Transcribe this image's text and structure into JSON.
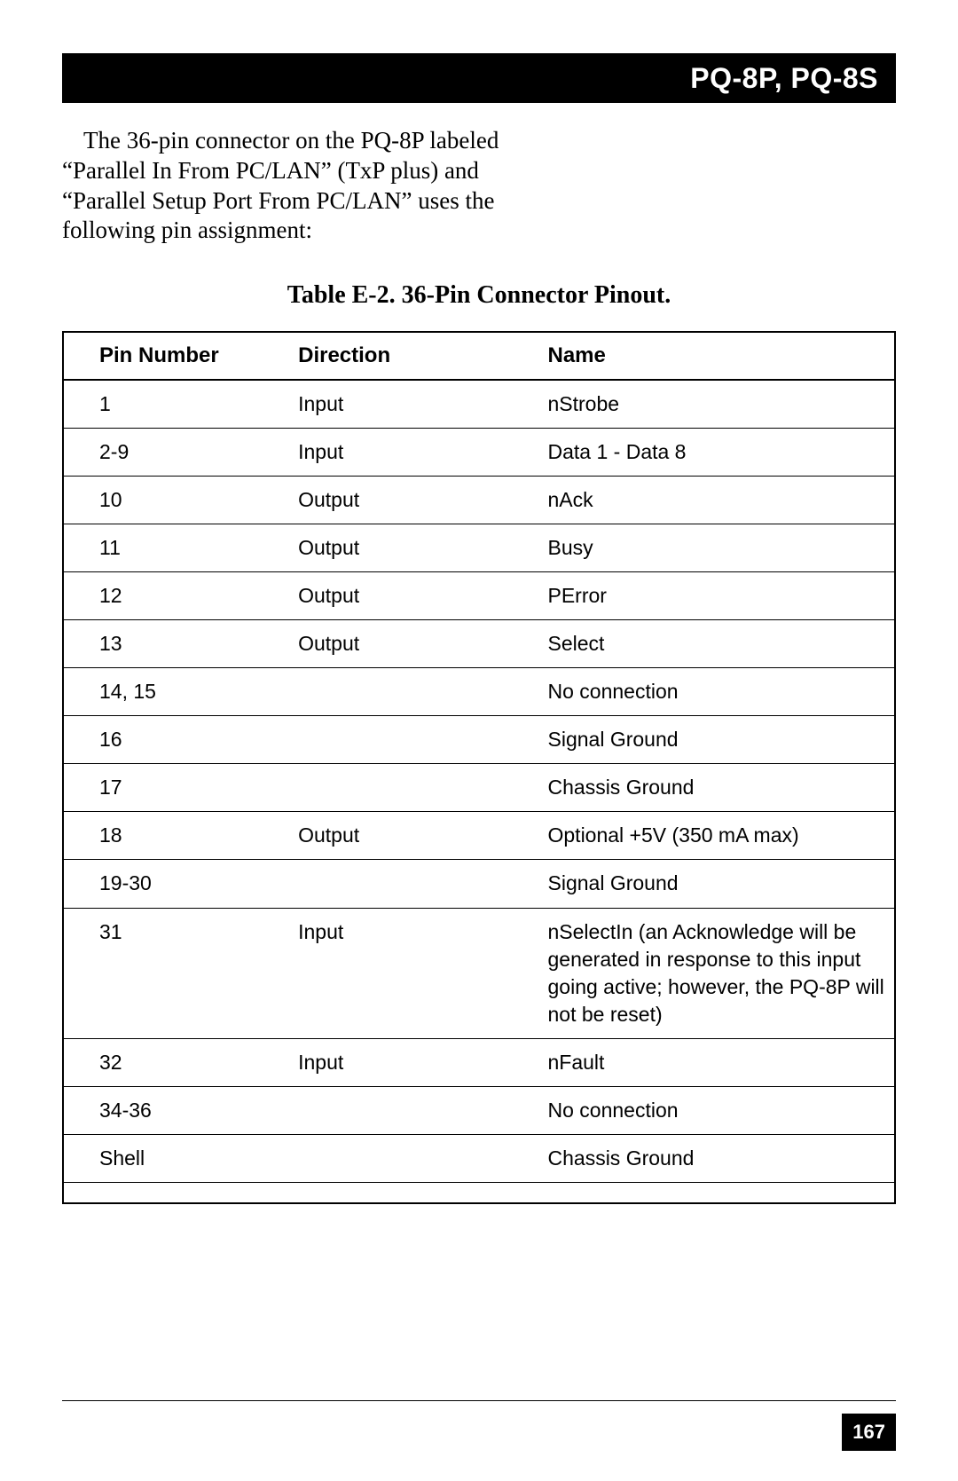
{
  "header": {
    "title": "PQ-8P, PQ-8S"
  },
  "intro_text": "The 36-pin connector on the PQ-8P labeled “Parallel In From PC/LAN” (TxP plus) and “Parallel Setup Port From PC/LAN” uses the following pin assignment:",
  "table": {
    "caption": "Table E-2. 36-Pin Connector Pinout.",
    "columns": [
      "Pin Number",
      "Direction",
      "Name"
    ],
    "rows": [
      [
        "1",
        "Input",
        "nStrobe"
      ],
      [
        "2-9",
        "Input",
        "Data 1 - Data 8"
      ],
      [
        "10",
        "Output",
        "nAck"
      ],
      [
        "11",
        "Output",
        "Busy"
      ],
      [
        "12",
        "Output",
        "PError"
      ],
      [
        "13",
        "Output",
        "Select"
      ],
      [
        "14, 15",
        "",
        "No connection"
      ],
      [
        "16",
        "",
        "Signal Ground"
      ],
      [
        "17",
        "",
        "Chassis Ground"
      ],
      [
        "18",
        "Output",
        "Optional +5V (350 mA max)"
      ],
      [
        "19-30",
        "",
        "Signal Ground"
      ],
      [
        "31",
        "Input",
        "nSelectIn (an Acknowledge will be generated in response to this input going active; however, the PQ-8P will not be reset)"
      ],
      [
        "32",
        "Input",
        "nFault"
      ],
      [
        "34-36",
        "",
        "No connection"
      ],
      [
        "Shell",
        "",
        "Chassis Ground"
      ]
    ],
    "border_color": "#000000",
    "header_fontsize": 24,
    "cell_fontsize": 23,
    "col_widths_pct": [
      24,
      30,
      46
    ]
  },
  "page_number": "167",
  "colors": {
    "black": "#000000",
    "white": "#ffffff"
  }
}
